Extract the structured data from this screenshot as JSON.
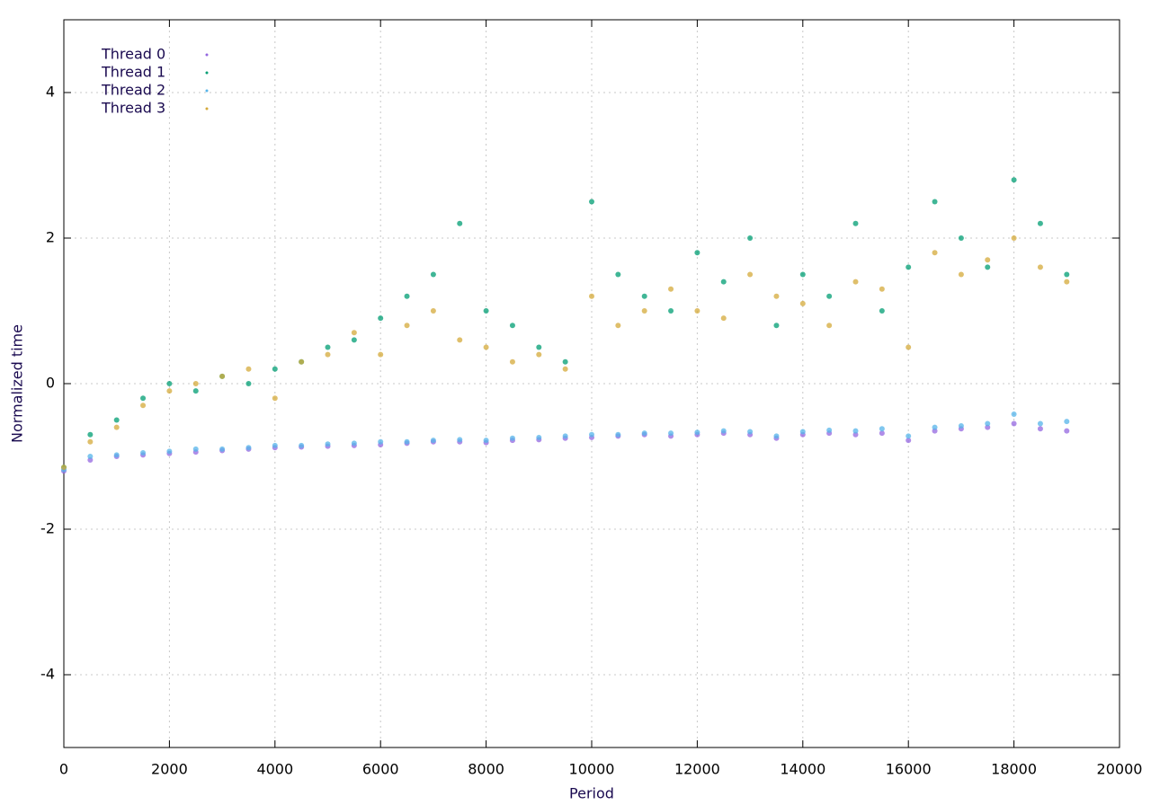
{
  "chart_data": {
    "type": "scatter",
    "xlabel": "Period",
    "ylabel": "Normalized time",
    "x": [
      0,
      500,
      1000,
      1500,
      2000,
      2500,
      3000,
      3500,
      4000,
      4500,
      5000,
      5500,
      6000,
      6500,
      7000,
      7500,
      8000,
      8500,
      9000,
      9500,
      10000,
      10500,
      11000,
      11500,
      12000,
      12500,
      13000,
      13500,
      14000,
      14500,
      15000,
      15500,
      16000,
      16500,
      17000,
      17500,
      18000,
      18500,
      19000
    ],
    "series": [
      {
        "name": "Thread 0",
        "color": "#9467e0",
        "values": [
          -1.2,
          -1.05,
          -1.0,
          -0.98,
          -0.96,
          -0.94,
          -0.92,
          -0.9,
          -0.88,
          -0.87,
          -0.86,
          -0.85,
          -0.84,
          -0.82,
          -0.8,
          -0.8,
          -0.81,
          -0.78,
          -0.77,
          -0.75,
          -0.74,
          -0.72,
          -0.7,
          -0.72,
          -0.7,
          -0.68,
          -0.7,
          -0.75,
          -0.7,
          -0.68,
          -0.7,
          -0.68,
          -0.78,
          -0.65,
          -0.62,
          -0.6,
          -0.55,
          -0.62,
          -0.65
        ]
      },
      {
        "name": "Thread 1",
        "color": "#009e73",
        "values": [
          -1.15,
          -0.7,
          -0.5,
          -0.2,
          0.0,
          -0.1,
          0.1,
          0.0,
          0.2,
          0.3,
          0.5,
          0.6,
          0.9,
          1.2,
          1.5,
          2.2,
          1.0,
          0.8,
          0.5,
          0.3,
          2.5,
          1.5,
          1.2,
          1.0,
          1.8,
          1.4,
          2.0,
          0.8,
          1.5,
          1.2,
          2.2,
          1.0,
          1.6,
          2.5,
          2.0,
          1.6,
          2.8,
          2.2,
          1.5
        ]
      },
      {
        "name": "Thread 2",
        "color": "#56b4e9",
        "values": [
          -1.18,
          -1.0,
          -0.98,
          -0.95,
          -0.93,
          -0.9,
          -0.9,
          -0.88,
          -0.85,
          -0.85,
          -0.83,
          -0.82,
          -0.8,
          -0.8,
          -0.78,
          -0.77,
          -0.78,
          -0.75,
          -0.74,
          -0.72,
          -0.7,
          -0.7,
          -0.68,
          -0.68,
          -0.67,
          -0.65,
          -0.66,
          -0.72,
          -0.66,
          -0.64,
          -0.65,
          -0.62,
          -0.72,
          -0.6,
          -0.58,
          -0.55,
          -0.42,
          -0.55,
          -0.52
        ]
      },
      {
        "name": "Thread 3",
        "color": "#d4a93a",
        "values": [
          -1.15,
          -0.8,
          -0.6,
          -0.3,
          -0.1,
          0.0,
          0.1,
          0.2,
          -0.2,
          0.3,
          0.4,
          0.7,
          0.4,
          0.8,
          1.0,
          0.6,
          0.5,
          0.3,
          0.4,
          0.2,
          1.2,
          0.8,
          1.0,
          1.3,
          1.0,
          0.9,
          1.5,
          1.2,
          1.1,
          0.8,
          1.4,
          1.3,
          0.5,
          1.8,
          1.5,
          1.7,
          2.0,
          1.6,
          1.4
        ]
      }
    ],
    "xlim": [
      0,
      20000
    ],
    "xticks": [
      0,
      2000,
      4000,
      6000,
      8000,
      10000,
      12000,
      14000,
      16000,
      18000,
      20000
    ],
    "ylim": [
      -5,
      5
    ],
    "yticks": [
      -4,
      -2,
      0,
      2,
      4
    ],
    "grid": true,
    "legend": "top-left"
  }
}
